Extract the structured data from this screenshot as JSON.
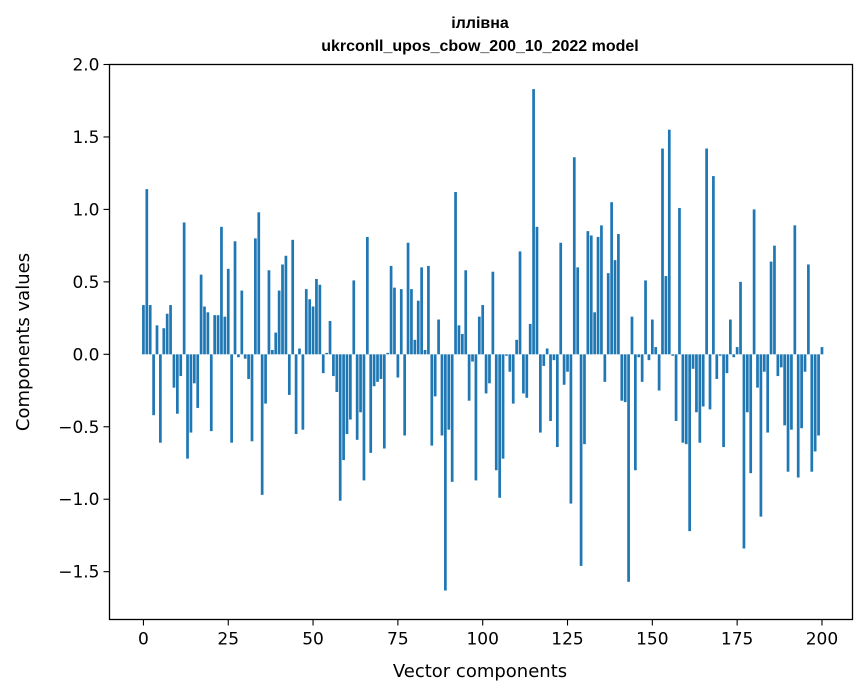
{
  "chart_data": {
    "type": "bar",
    "title_line1": "іллівна",
    "title_line2": "ukrconll_upos_cbow_200_10_2022 model",
    "xlabel": "Vector components",
    "ylabel": "Components values",
    "xlim": [
      -10,
      209
    ],
    "ylim": [
      -1.83,
      2.0
    ],
    "x_ticks": [
      0,
      25,
      50,
      75,
      100,
      125,
      150,
      175,
      200
    ],
    "y_ticks": [
      -1.5,
      -1.0,
      -0.5,
      0.0,
      0.5,
      1.0,
      1.5,
      2.0
    ],
    "y_tick_labels": [
      "−1.5",
      "−1.0",
      "−0.5",
      "0.0",
      "0.5",
      "1.0",
      "1.5",
      "2.0"
    ],
    "bar_color": "#1f77b4",
    "values": [
      0.34,
      1.14,
      0.34,
      -0.42,
      0.2,
      -0.61,
      0.18,
      0.28,
      0.34,
      -0.23,
      -0.41,
      -0.15,
      0.91,
      -0.72,
      -0.54,
      -0.2,
      -0.37,
      0.55,
      0.33,
      0.29,
      -0.53,
      0.27,
      0.27,
      0.88,
      0.26,
      0.59,
      -0.61,
      0.78,
      -0.02,
      0.44,
      -0.03,
      -0.17,
      -0.6,
      0.8,
      0.98,
      -0.97,
      -0.34,
      0.58,
      0.03,
      0.15,
      0.44,
      0.62,
      0.68,
      -0.28,
      0.79,
      -0.55,
      0.04,
      -0.52,
      0.45,
      0.38,
      0.33,
      0.52,
      0.48,
      -0.13,
      0.01,
      0.23,
      -0.15,
      -0.26,
      -1.01,
      -0.73,
      -0.55,
      -0.45,
      0.51,
      -0.59,
      -0.4,
      -0.87,
      0.81,
      -0.68,
      -0.22,
      -0.19,
      -0.17,
      -0.65,
      0.01,
      0.61,
      0.46,
      -0.16,
      0.45,
      -0.56,
      0.77,
      0.45,
      0.1,
      0.37,
      0.6,
      0.03,
      0.61,
      -0.63,
      -0.29,
      0.24,
      -0.56,
      -1.63,
      -0.52,
      -0.88,
      1.12,
      0.2,
      0.14,
      0.58,
      -0.32,
      -0.05,
      -0.87,
      0.26,
      0.34,
      -0.27,
      -0.2,
      0.57,
      -0.8,
      -0.99,
      -0.72,
      -0.01,
      -0.12,
      -0.34,
      0.1,
      0.71,
      -0.27,
      -0.3,
      0.21,
      1.83,
      0.88,
      -0.54,
      -0.08,
      0.04,
      -0.46,
      -0.04,
      -0.64,
      0.77,
      -0.21,
      -0.12,
      -1.03,
      1.36,
      0.6,
      -1.46,
      -0.62,
      0.85,
      0.82,
      0.29,
      0.81,
      0.89,
      -0.19,
      0.56,
      1.05,
      0.65,
      0.83,
      -0.32,
      -0.33,
      -1.57,
      0.26,
      -0.8,
      -0.02,
      -0.19,
      0.51,
      -0.04,
      0.24,
      0.05,
      -0.25,
      1.42,
      0.54,
      1.55,
      -0.01,
      -0.46,
      1.01,
      -0.61,
      -0.62,
      -1.22,
      -0.1,
      -0.4,
      -0.61,
      -0.36,
      1.42,
      -0.38,
      1.23,
      -0.17,
      -0.01,
      -0.64,
      -0.13,
      0.24,
      -0.02,
      0.05,
      0.5,
      -1.34,
      -0.4,
      -0.82,
      1.0,
      -0.23,
      -1.12,
      -0.12,
      -0.54,
      0.64,
      0.75,
      -0.15,
      -0.09,
      -0.49,
      -0.81,
      -0.52,
      0.89,
      -0.85,
      -0.51,
      -0.12,
      0.62,
      -0.81,
      -0.67,
      -0.56,
      0.05
    ]
  }
}
